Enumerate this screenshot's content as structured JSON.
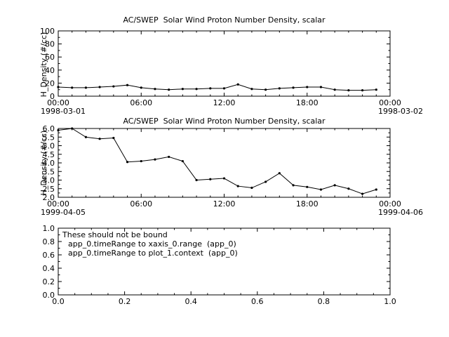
{
  "colors": {
    "line": "#000000",
    "frame": "#000000",
    "background": "#ffffff",
    "text": "#000000"
  },
  "chart_data": [
    {
      "type": "line",
      "title": "AC/SWEP  Solar Wind Proton Number Density, scalar",
      "ylabel": "H_Density (#/cc)",
      "date_left": "1998-03-01",
      "date_right": "1998-03-02",
      "xlim": [
        0,
        24
      ],
      "ylim": [
        0,
        100
      ],
      "xtick_labels": [
        "00:00",
        "06:00",
        "12:00",
        "18:00",
        "00:00"
      ],
      "ytick_labels": [
        "0",
        "20",
        "40",
        "60",
        "80",
        "100"
      ],
      "x": [
        0,
        1,
        2,
        3,
        4,
        5,
        6,
        7,
        8,
        9,
        10,
        11,
        12,
        13,
        14,
        15,
        16,
        17,
        18,
        19,
        20,
        21,
        22,
        23
      ],
      "values": [
        14,
        13,
        13,
        14,
        15,
        17,
        13,
        11,
        10,
        11,
        11,
        12,
        12,
        18,
        11,
        10,
        12,
        13,
        14,
        14,
        10,
        9,
        9,
        10
      ],
      "legend": null,
      "grid": false
    },
    {
      "type": "line",
      "title": "AC/SWEP  Solar Wind Proton Number Density, scalar",
      "ylabel": "H_Density (#/cc)",
      "date_left": "1999-04-05",
      "date_right": "1999-04-06",
      "xlim": [
        0,
        24
      ],
      "ylim": [
        2.0,
        6.0
      ],
      "xtick_labels": [
        "00:00",
        "06:00",
        "12:00",
        "18:00",
        "00:00"
      ],
      "ytick_labels": [
        "2.0",
        "2.5",
        "3.0",
        "3.5",
        "4.0",
        "4.5",
        "5.0",
        "5.5",
        "6.0"
      ],
      "x": [
        0,
        1,
        2,
        3,
        4,
        5,
        6,
        7,
        8,
        9,
        10,
        11,
        12,
        13,
        14,
        15,
        16,
        17,
        18,
        19,
        20,
        21,
        22,
        23
      ],
      "values": [
        5.9,
        6.0,
        5.5,
        5.4,
        5.45,
        4.05,
        4.1,
        4.2,
        4.35,
        4.1,
        3.0,
        3.05,
        3.1,
        2.65,
        2.55,
        2.9,
        3.4,
        2.7,
        2.6,
        2.45,
        2.7,
        2.5,
        2.2,
        2.45
      ],
      "legend": null,
      "grid": false
    },
    {
      "type": "line",
      "title": "",
      "ylabel": "",
      "date_left": "",
      "date_right": "",
      "xlim": [
        0,
        1
      ],
      "ylim": [
        0,
        1
      ],
      "xtick_labels": [
        "0.0",
        "0.2",
        "0.4",
        "0.6",
        "0.8",
        "1.0"
      ],
      "ytick_labels": [
        "0.0",
        "0.2",
        "0.4",
        "0.6",
        "0.8",
        "1.0"
      ],
      "x": null,
      "values": null,
      "legend": null,
      "grid": false,
      "annotations": [
        "These should not be bound",
        "app_0.timeRange to xaxis_0.range  (app_0)",
        "app_0.timeRange to plot_1.context  (app_0)"
      ]
    }
  ]
}
